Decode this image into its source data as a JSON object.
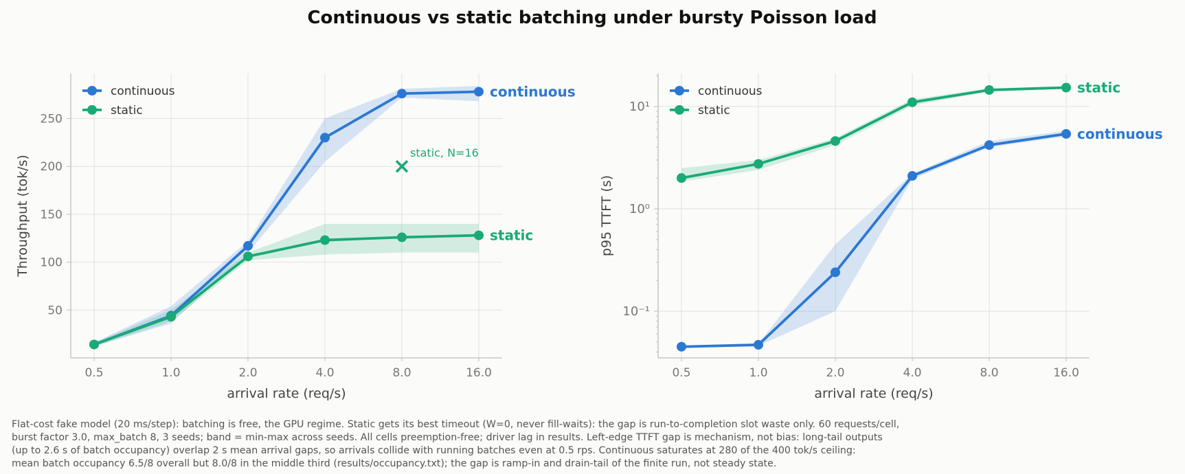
{
  "title": "Continuous vs static batching under bursty Poisson load",
  "caption": "Flat-cost fake model (20 ms/step): batching is free, the GPU regime. Static gets its best timeout (W=0, never fill-waits): the gap is run-to-completion slot waste only. 60 requests/cell,\nburst factor 3.0, max_batch 8, 3 seeds; band = min-max across seeds. All cells preemption-free; driver lag in results. Left-edge TTFT gap is mechanism, not bias: long-tail outputs\n(up to 2.6 s of batch occupancy) overlap 2 s mean arrival gaps, so arrivals collide with running batches even at 0.5 rps. Continuous saturates at 280 of the 400 tok/s ceiling:\nmean batch occupancy 6.5/8 overall but 8.0/8 in the middle third (results/occupancy.txt); the gap is ramp-in and drain-tail of the finite run, not steady state.",
  "colors": {
    "continuous": "#2b78d3",
    "static": "#1aaa76"
  },
  "chart_data": [
    {
      "type": "line",
      "xlabel": "arrival rate (req/s)",
      "ylabel": "Throughput (tok/s)",
      "x_scale": "categorical",
      "categories": [
        "0.5",
        "1.0",
        "2.0",
        "4.0",
        "8.0",
        "16.0"
      ],
      "ylim": [
        0,
        297
      ],
      "yticks": [
        50,
        100,
        150,
        200,
        250
      ],
      "ytick_labels": [
        "50",
        "100",
        "150",
        "200",
        "250"
      ],
      "grid": true,
      "legend": "top-left",
      "series": [
        {
          "name": "continuous",
          "end_label": "continuous",
          "values": [
            14,
            44,
            117,
            230,
            276,
            278
          ],
          "band_low": [
            12,
            36,
            110,
            205,
            272,
            268
          ],
          "band_high": [
            16,
            54,
            122,
            250,
            281,
            284
          ]
        },
        {
          "name": "static",
          "end_label": "static",
          "values": [
            14,
            43,
            106,
            123,
            126,
            128
          ],
          "band_low": [
            12,
            38,
            102,
            108,
            110,
            110
          ],
          "band_high": [
            16,
            50,
            110,
            140,
            140,
            140
          ]
        }
      ],
      "annotation": {
        "series": "static",
        "category": "8.0",
        "value": 200,
        "marker": "x",
        "text": "static, N=16"
      }
    },
    {
      "type": "line",
      "xlabel": "arrival rate (req/s)",
      "ylabel": "p95 TTFT (s)",
      "x_scale": "categorical",
      "y_scale": "log",
      "categories": [
        "0.5",
        "1.0",
        "2.0",
        "4.0",
        "8.0",
        "16.0"
      ],
      "ylim": [
        0.035,
        21
      ],
      "ytick_labels": [
        "10⁻¹",
        "10⁰",
        "10¹"
      ],
      "grid": true,
      "legend": "top-left",
      "series": [
        {
          "name": "continuous",
          "end_label": "continuous",
          "values": [
            0.045,
            0.047,
            0.24,
            2.1,
            4.2,
            5.4
          ],
          "band_low": [
            0.044,
            0.046,
            0.1,
            1.95,
            4.0,
            5.1
          ],
          "band_high": [
            0.046,
            0.048,
            0.45,
            2.2,
            4.6,
            5.8
          ]
        },
        {
          "name": "static",
          "end_label": "static",
          "values": [
            2.0,
            2.75,
            4.6,
            11.0,
            14.5,
            15.3
          ],
          "band_low": [
            1.85,
            2.4,
            4.2,
            10.2,
            14.0,
            15.0
          ],
          "band_high": [
            2.5,
            3.0,
            4.9,
            11.8,
            15.0,
            15.8
          ]
        }
      ]
    }
  ]
}
